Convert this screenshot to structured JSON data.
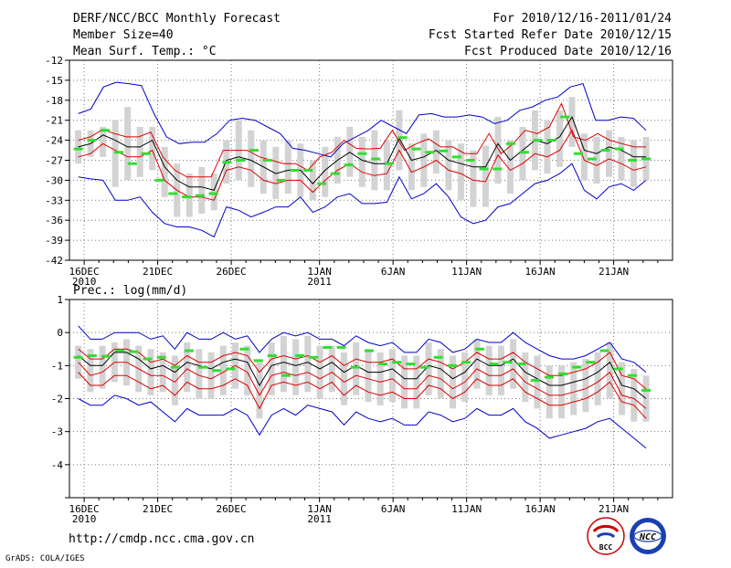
{
  "header": {
    "title": "DERF/NCC/BCC Monthly Forecast",
    "member_size": "Member Size=40",
    "variable": "Mean Surf. Temp.: °C",
    "period": "For 2010/12/16-2011/01/24",
    "start_date": "Fcst Started Refer Date 2010/12/15",
    "produced_date": "Fcst Produced Date 2010/12/16"
  },
  "footer": {
    "url": "http://cmdp.ncc.cma.gov.cn",
    "grads": "GrADS: COLA/IGES",
    "logo_bcc": "BCC",
    "logo_ncc": "NCC"
  },
  "colors": {
    "envelope": "#0000cc",
    "spread": "#dd0000",
    "mean": "#000000",
    "box": "#d3d3d3",
    "marker": "#33dd33",
    "grid": "#777777"
  },
  "chart_data": [
    {
      "type": "line",
      "title": "Mean Surf. Temp.: °C",
      "x_labels": [
        {
          "day": 0,
          "line1": "16DEC",
          "line2": "2010"
        },
        {
          "day": 5,
          "line1": "21DEC",
          "line2": ""
        },
        {
          "day": 10,
          "line1": "26DEC",
          "line2": ""
        },
        {
          "day": 16,
          "line1": "1JAN",
          "line2": "2011"
        },
        {
          "day": 21,
          "line1": "6JAN",
          "line2": ""
        },
        {
          "day": 26,
          "line1": "11JAN",
          "line2": ""
        },
        {
          "day": 31,
          "line1": "16JAN",
          "line2": ""
        },
        {
          "day": 36,
          "line1": "21JAN",
          "line2": ""
        }
      ],
      "xlim": [
        -1,
        40
      ],
      "ylim": [
        -42,
        -12
      ],
      "yticks": [
        -12,
        -15,
        -18,
        -21,
        -24,
        -27,
        -30,
        -33,
        -36,
        -39,
        -42
      ],
      "ytick_labels": [
        "-12",
        "-15",
        "-18",
        "-21",
        "-24",
        "-27",
        "-30",
        "-33",
        "-36",
        "-39",
        "-42"
      ],
      "series": [
        {
          "name": "max",
          "values": [
            -20,
            -19.3,
            -16,
            -15.3,
            -15.5,
            -15.8,
            -20,
            -23.5,
            -24.5,
            -24.3,
            -24.3,
            -23,
            -21,
            -20.7,
            -21,
            -22,
            -23,
            -25.2,
            -25.5,
            -26,
            -26.5,
            -24.5,
            -23.5,
            -22.5,
            -21,
            -22,
            -23,
            -20.2,
            -20,
            -20.5,
            -20.5,
            -20.2,
            -20.5,
            -21.5,
            -21,
            -19.5,
            -19,
            -18,
            -17.5,
            -16,
            -15.5,
            -21,
            -21,
            -20.5,
            -20.7,
            -22.5
          ]
        },
        {
          "name": "upper",
          "values": [
            -24,
            -23.5,
            -22.4,
            -23,
            -23.5,
            -23.5,
            -22.8,
            -26.5,
            -28.5,
            -29.5,
            -29.5,
            -29.5,
            -25.5,
            -25.5,
            -25.5,
            -26.5,
            -27,
            -27.5,
            -27.5,
            -28.5,
            -26.5,
            -25.8,
            -24,
            -25.2,
            -25.3,
            -25.2,
            -22.5,
            -25.5,
            -24.5,
            -23.8,
            -25,
            -25,
            -26,
            -26,
            -23,
            -26,
            -24.5,
            -22.5,
            -23,
            -22,
            -18.5,
            -23.5,
            -24,
            -23,
            -24,
            -24.5,
            -25,
            -25
          ]
        },
        {
          "name": "mean",
          "values": [
            -25,
            -24.5,
            -23.2,
            -24,
            -25,
            -25,
            -24,
            -28,
            -30,
            -31,
            -31,
            -31.5,
            -27,
            -26.5,
            -27,
            -28,
            -29,
            -28.5,
            -28.5,
            -30.5,
            -28.5,
            -27,
            -25.8,
            -27,
            -27.5,
            -27.5,
            -23.7,
            -27,
            -26.5,
            -25.5,
            -27,
            -27.5,
            -28,
            -28,
            -24.5,
            -27,
            -25.5,
            -24,
            -24.5,
            -23.5,
            -20.5,
            -25.5,
            -26,
            -25,
            -25.5,
            -26.5,
            -26.5
          ]
        },
        {
          "name": "lower",
          "values": [
            -26.5,
            -26,
            -24.5,
            -25.5,
            -26.5,
            -26.5,
            -25.5,
            -30,
            -31.5,
            -32.5,
            -32.5,
            -33,
            -28.5,
            -28,
            -28.5,
            -30,
            -30.5,
            -30,
            -30,
            -31.8,
            -30,
            -28.5,
            -27.5,
            -28.8,
            -29.3,
            -29,
            -25.5,
            -28.8,
            -28,
            -27,
            -28.5,
            -29,
            -30,
            -30.2,
            -26.2,
            -28.5,
            -27.5,
            -26,
            -26.5,
            -25.5,
            -22.5,
            -27,
            -27.8,
            -26.8,
            -27.5,
            -28.5,
            -28
          ]
        },
        {
          "name": "min",
          "values": [
            -29.5,
            -29.8,
            -30,
            -33,
            -33,
            -32.5,
            -34.8,
            -36.5,
            -37,
            -37,
            -37.5,
            -38.5,
            -34,
            -34.5,
            -35.5,
            -34.8,
            -34,
            -34,
            -32.5,
            -34.8,
            -34,
            -32.5,
            -32,
            -33.5,
            -33.5,
            -33.3,
            -29.5,
            -32.8,
            -32,
            -30.5,
            -32.5,
            -35.5,
            -36.5,
            -36,
            -34,
            -33.5,
            -32,
            -30.5,
            -30,
            -29,
            -27.5,
            -31.5,
            -32.8,
            -31,
            -30.5,
            -31.5,
            -30
          ]
        },
        {
          "name": "box_top",
          "values": [
            -22.5,
            -22.5,
            -22,
            -21,
            -19,
            -22,
            -22,
            -25,
            -27.5,
            -29,
            -28,
            -29,
            -24,
            -21,
            -22.5,
            -24,
            -25,
            -24,
            -24.5,
            -27,
            -25,
            -23.5,
            -22,
            -23.5,
            -22.5,
            -24,
            -19.5,
            -24.5,
            -23,
            -22.5,
            -24,
            -24.5,
            -25.5,
            -24.8,
            -20.5,
            -24,
            -22,
            -19.5,
            -21,
            -19.5,
            -17.5,
            -23,
            -23.5,
            -22.5,
            -23.5,
            -24,
            -23.5
          ]
        },
        {
          "name": "box_bottom",
          "values": [
            -27.5,
            -26.5,
            -26.5,
            -31,
            -30,
            -29.5,
            -28.5,
            -32.5,
            -35.5,
            -35.5,
            -35,
            -34.5,
            -30.5,
            -30,
            -31,
            -32,
            -32.8,
            -32,
            -32.5,
            -33,
            -32.5,
            -30.5,
            -29.5,
            -31,
            -31.5,
            -31.5,
            -28.5,
            -31.5,
            -31,
            -29,
            -31.5,
            -33,
            -34,
            -34,
            -30.5,
            -32,
            -30,
            -28.5,
            -29,
            -28,
            -25,
            -30,
            -30.5,
            -29.5,
            -30,
            -31,
            -30
          ]
        },
        {
          "name": "marker",
          "values": [
            -25.3,
            -24,
            -22.5,
            -25.8,
            -27.5,
            -26,
            -30,
            -32,
            -32.5,
            -32.3,
            -32,
            -27.3,
            -27,
            -25.5,
            -27,
            -30,
            -28.5,
            -28.5,
            -30.5,
            -29,
            -27.7,
            -26,
            -26.8,
            -27.5,
            -23.6,
            -25.3,
            -25.8,
            -25.6,
            -26.5,
            -27,
            -28.3,
            -28.3,
            -24.5,
            -25.8,
            -24,
            -24,
            -20.5,
            -26,
            -26.8,
            -25.5,
            -25.3,
            -27,
            -26.8
          ]
        }
      ]
    },
    {
      "type": "line",
      "title": "Prec.: log(mm/d)",
      "x_labels": [
        {
          "day": 0,
          "line1": "16DEC",
          "line2": "2010"
        },
        {
          "day": 5,
          "line1": "21DEC",
          "line2": ""
        },
        {
          "day": 10,
          "line1": "26DEC",
          "line2": ""
        },
        {
          "day": 16,
          "line1": "1JAN",
          "line2": "2011"
        },
        {
          "day": 21,
          "line1": "6JAN",
          "line2": ""
        },
        {
          "day": 26,
          "line1": "11JAN",
          "line2": ""
        },
        {
          "day": 31,
          "line1": "16JAN",
          "line2": ""
        },
        {
          "day": 36,
          "line1": "21JAN",
          "line2": ""
        }
      ],
      "xlim": [
        -1,
        40
      ],
      "ylim": [
        -5,
        1
      ],
      "yticks": [
        1,
        0,
        -1,
        -2,
        -3,
        -4,
        -5
      ],
      "ytick_labels": [
        "1",
        "0",
        "-1",
        "-2",
        "-3",
        "-4",
        ""
      ],
      "series": [
        {
          "name": "max",
          "values": [
            0.2,
            -0.2,
            -0.2,
            0,
            0,
            0,
            -0.2,
            -0.1,
            -0.5,
            0,
            -0.2,
            -0.2,
            0,
            -0.2,
            -0.1,
            -0.6,
            -0.2,
            0,
            -0.1,
            0,
            -0.2,
            -0.2,
            -0.4,
            -0.1,
            -0.3,
            -0.4,
            -0.3,
            -0.6,
            -0.6,
            -0.2,
            -0.3,
            -0.6,
            -0.5,
            -0.2,
            -0.3,
            -0.3,
            0,
            -0.3,
            -0.5,
            -0.7,
            -0.8,
            -0.8,
            -0.7,
            -0.5,
            -0.3,
            -0.8,
            -0.9,
            -1.2
          ]
        },
        {
          "name": "upper",
          "values": [
            -0.5,
            -0.8,
            -0.8,
            -0.5,
            -0.5,
            -0.6,
            -0.9,
            -0.8,
            -1,
            -0.7,
            -0.9,
            -0.9,
            -0.7,
            -0.6,
            -0.7,
            -1.2,
            -0.8,
            -0.7,
            -0.8,
            -0.7,
            -0.9,
            -0.7,
            -1,
            -0.8,
            -0.9,
            -0.9,
            -0.8,
            -1.1,
            -1.1,
            -0.8,
            -0.9,
            -1.1,
            -0.9,
            -0.6,
            -0.8,
            -0.8,
            -0.6,
            -0.9,
            -1.1,
            -1.3,
            -1.3,
            -1.2,
            -1.1,
            -0.9,
            -0.6,
            -1.3,
            -1.4,
            -1.7
          ]
        },
        {
          "name": "mean",
          "values": [
            -0.7,
            -1,
            -1,
            -0.6,
            -0.6,
            -0.8,
            -1.1,
            -1,
            -1.2,
            -0.9,
            -1,
            -1.1,
            -0.9,
            -0.8,
            -0.9,
            -1.6,
            -1,
            -0.9,
            -1,
            -0.9,
            -1.1,
            -0.9,
            -1.2,
            -1,
            -1.2,
            -1.2,
            -1.1,
            -1.4,
            -1.4,
            -1,
            -1.1,
            -1.4,
            -1.2,
            -0.8,
            -1,
            -1,
            -0.8,
            -1.2,
            -1.4,
            -1.6,
            -1.6,
            -1.5,
            -1.4,
            -1.2,
            -0.9,
            -1.6,
            -1.7,
            -2
          ]
        },
        {
          "name": "lower",
          "values": [
            -0.9,
            -1.3,
            -1.2,
            -0.9,
            -0.9,
            -1.1,
            -1.3,
            -1.3,
            -1.5,
            -1.1,
            -1.3,
            -1.4,
            -1.2,
            -1,
            -1.2,
            -1.9,
            -1.3,
            -1.2,
            -1.3,
            -1.2,
            -1.4,
            -1.2,
            -1.5,
            -1.3,
            -1.4,
            -1.5,
            -1.4,
            -1.7,
            -1.7,
            -1.3,
            -1.4,
            -1.7,
            -1.5,
            -1.1,
            -1.3,
            -1.3,
            -1.1,
            -1.5,
            -1.7,
            -1.9,
            -1.9,
            -1.8,
            -1.7,
            -1.5,
            -1.2,
            -1.9,
            -2,
            -2.3
          ]
        },
        {
          "name": "bottom_red",
          "values": [
            -1.2,
            -1.6,
            -1.6,
            -1.3,
            -1.3,
            -1.5,
            -1.7,
            -1.6,
            -1.9,
            -1.5,
            -1.7,
            -1.7,
            -1.6,
            -1.4,
            -1.6,
            -2.3,
            -1.6,
            -1.5,
            -1.6,
            -1.5,
            -1.7,
            -1.5,
            -1.9,
            -1.6,
            -1.8,
            -1.9,
            -1.8,
            -2,
            -2,
            -1.6,
            -1.7,
            -2,
            -1.8,
            -1.4,
            -1.6,
            -1.6,
            -1.4,
            -1.8,
            -2,
            -2.2,
            -2.2,
            -2.1,
            -2,
            -1.8,
            -1.5,
            -2.1,
            -2.2,
            -2.6
          ]
        },
        {
          "name": "min",
          "values": [
            -2,
            -2.2,
            -2.2,
            -1.9,
            -2,
            -2.2,
            -2.1,
            -2.4,
            -2.7,
            -2.3,
            -2.5,
            -2.5,
            -2.5,
            -2.3,
            -2.5,
            -3.1,
            -2.5,
            -2.3,
            -2.5,
            -2.2,
            -2.3,
            -2.4,
            -2.8,
            -2.4,
            -2.6,
            -2.7,
            -2.6,
            -2.8,
            -2.8,
            -2.4,
            -2.5,
            -2.7,
            -2.6,
            -2.3,
            -2.5,
            -2.5,
            -2.3,
            -2.7,
            -2.9,
            -3.2,
            -3.1,
            -3,
            -2.9,
            -2.7,
            -2.6,
            -2.9,
            -3.2,
            -3.5
          ]
        },
        {
          "name": "box_top",
          "values": [
            -0.4,
            -0.5,
            -0.4,
            -0.3,
            -0.2,
            -0.4,
            -0.5,
            -0.6,
            -0.7,
            -0.3,
            -0.5,
            -0.6,
            -0.4,
            -0.3,
            -0.4,
            -0.9,
            -0.3,
            -0.1,
            -0.2,
            -0.1,
            -0.4,
            -0.4,
            -0.6,
            -0.3,
            -0.5,
            -0.6,
            -0.5,
            -0.7,
            -0.7,
            -0.3,
            -0.5,
            -0.7,
            -0.6,
            -0.2,
            -0.4,
            -0.4,
            -0.2,
            -0.6,
            -0.7,
            -1,
            -1,
            -0.9,
            -0.8,
            -0.6,
            -0.3,
            -0.9,
            -1.1,
            -1.3
          ]
        },
        {
          "name": "box_bottom",
          "values": [
            -1.4,
            -1.8,
            -1.7,
            -1.5,
            -1.6,
            -1.8,
            -1.9,
            -1.8,
            -2.2,
            -1.8,
            -2,
            -2,
            -1.9,
            -1.7,
            -1.9,
            -2.6,
            -1.9,
            -1.8,
            -1.9,
            -1.8,
            -2,
            -1.8,
            -2.2,
            -1.9,
            -2.1,
            -2.2,
            -2.1,
            -2.3,
            -2.3,
            -1.9,
            -2,
            -2.3,
            -2.1,
            -1.7,
            -1.9,
            -1.9,
            -1.7,
            -2.1,
            -2.3,
            -2.6,
            -2.6,
            -2.5,
            -2.4,
            -2.2,
            -2,
            -2.5,
            -2.7,
            -2.7
          ]
        },
        {
          "name": "marker",
          "values": [
            -0.75,
            -0.7,
            -0.72,
            -0.55,
            -0.58,
            -0.8,
            -0.75,
            -1.05,
            -0.55,
            -1.05,
            -1.15,
            -1.1,
            -0.5,
            -0.85,
            -0.7,
            -1.3,
            -0.7,
            -0.75,
            -0.45,
            -0.45,
            -1.05,
            -0.55,
            -0.95,
            -0.9,
            -0.95,
            -1.05,
            -0.75,
            -1,
            -0.9,
            -0.5,
            -0.95,
            -0.9,
            -0.95,
            -1.45,
            -1.35,
            -1.25,
            -1.05,
            -0.9,
            -0.55,
            -1.1,
            -1.3,
            -1.75
          ]
        }
      ]
    }
  ]
}
